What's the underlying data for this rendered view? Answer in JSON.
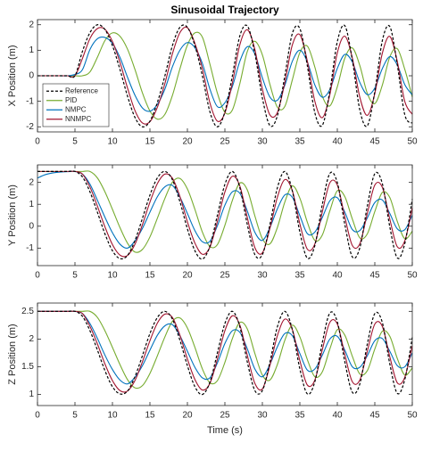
{
  "chart_data": [
    {
      "type": "line",
      "title": "Sinusoidal Trajectory",
      "ylabel": "X Position (m)",
      "legend": "lower left",
      "x": [
        0,
        1,
        2,
        3,
        4,
        5,
        6,
        7,
        8,
        9,
        10,
        11,
        12,
        13,
        14,
        15,
        16,
        17,
        18,
        19,
        20,
        21,
        22,
        23,
        24,
        25,
        26,
        27,
        28,
        29,
        30,
        31,
        32,
        33,
        34,
        35,
        36,
        37,
        38,
        39,
        40,
        41,
        42,
        43,
        44,
        45,
        46,
        47,
        48,
        49,
        50
      ],
      "xlim": [
        0,
        50
      ],
      "xticks": [
        0,
        5,
        10,
        15,
        20,
        25,
        30,
        35,
        40,
        45,
        50
      ],
      "ylim": [
        -2.2,
        2.2
      ],
      "yticks": [
        -2,
        -1,
        0,
        1,
        2
      ],
      "series": [
        {
          "name": "Reference",
          "color": "#000000",
          "dashed": true,
          "values": [
            0,
            0,
            0,
            0,
            0,
            0,
            0.96,
            1.69,
            2.0,
            1.81,
            1.18,
            0.25,
            -0.79,
            -1.63,
            -2.0,
            -1.78,
            -1.04,
            0,
            1.18,
            1.9,
            1.9,
            1.18,
            0,
            -1.41,
            -2.0,
            -1.41,
            0,
            1.57,
            1.95,
            0.87,
            -0.87,
            -1.95,
            -1.57,
            0,
            1.66,
            1.85,
            0.39,
            -1.45,
            -1.94,
            -0.6,
            1.34,
            1.96,
            0.62,
            -1.34,
            -1.96,
            -0.62,
            1.37,
            1.93,
            0.43,
            -1.53,
            -1.86
          ]
        },
        {
          "name": "PID",
          "color": "#77ac30",
          "values": [
            0,
            0,
            0,
            0,
            0,
            0,
            0,
            0.15,
            0.73,
            1.38,
            1.68,
            1.55,
            1.05,
            0.25,
            -0.67,
            -1.38,
            -1.7,
            -1.51,
            -0.77,
            0.27,
            1.2,
            1.68,
            1.51,
            0.46,
            -0.68,
            -1.43,
            -1.34,
            -0.3,
            0.96,
            1.35,
            0.82,
            -0.33,
            -1.23,
            -1.2,
            -0.16,
            0.91,
            1.16,
            0.34,
            -0.8,
            -1.18,
            -0.43,
            0.69,
            1.09,
            0.4,
            -0.69,
            -1.09,
            -0.37,
            0.74,
            1.06,
            0.25,
            -0.83
          ]
        },
        {
          "name": "NMPC",
          "color": "#0072bd",
          "values": [
            0,
            0,
            0,
            0,
            0,
            0.05,
            0.24,
            1.03,
            1.45,
            1.5,
            1.27,
            0.72,
            -0.05,
            -0.76,
            -1.26,
            -1.39,
            -1.12,
            -0.52,
            0.35,
            1.0,
            1.3,
            1.1,
            0.48,
            -0.52,
            -1.21,
            -1.06,
            -0.42,
            0.57,
            1.14,
            0.85,
            -0.08,
            -0.83,
            -0.96,
            -0.37,
            0.57,
            1.0,
            0.54,
            -0.36,
            -0.84,
            -0.54,
            0.29,
            0.84,
            0.54,
            -0.26,
            -0.74,
            -0.48,
            0.28,
            0.75,
            0.42,
            -0.35,
            -0.75
          ]
        },
        {
          "name": "NNMPC",
          "color": "#a2142f",
          "values": [
            0,
            0,
            0,
            0,
            0,
            0,
            0.68,
            1.46,
            1.85,
            1.82,
            1.34,
            0.53,
            -0.47,
            -1.36,
            -1.85,
            -1.8,
            -1.23,
            -0.3,
            0.86,
            1.69,
            1.88,
            1.27,
            0.28,
            -1.06,
            -1.78,
            -1.46,
            -0.28,
            1.22,
            1.8,
            1.03,
            -0.52,
            -1.53,
            -1.44,
            -0.26,
            1.21,
            1.61,
            0.57,
            -1.0,
            -1.64,
            -0.74,
            0.9,
            1.55,
            0.7,
            -0.84,
            -1.55,
            -0.7,
            0.88,
            1.54,
            0.56,
            -1.01,
            -1.51
          ]
        }
      ]
    },
    {
      "type": "line",
      "ylabel": "Y Position (m)",
      "x": [
        0,
        1,
        2,
        3,
        4,
        5,
        6,
        7,
        8,
        9,
        10,
        11,
        12,
        13,
        14,
        15,
        16,
        17,
        18,
        19,
        20,
        21,
        22,
        23,
        24,
        25,
        26,
        27,
        28,
        29,
        30,
        31,
        32,
        33,
        34,
        35,
        36,
        37,
        38,
        39,
        40,
        41,
        42,
        43,
        44,
        45,
        46,
        47,
        48,
        49,
        50
      ],
      "xlim": [
        0,
        50
      ],
      "xticks": [
        0,
        5,
        10,
        15,
        20,
        25,
        30,
        35,
        40,
        45,
        50
      ],
      "ylim": [
        -1.8,
        2.8
      ],
      "yticks": [
        -1,
        0,
        1,
        2
      ],
      "series": [
        {
          "color": "#000000",
          "dashed": true,
          "values": [
            2.5,
            2.5,
            2.5,
            2.5,
            2.5,
            2.5,
            2.25,
            1.57,
            0.63,
            -0.35,
            -1.12,
            -1.48,
            -1.34,
            -0.66,
            0.36,
            1.42,
            2.21,
            2.5,
            2.12,
            1.12,
            -0.12,
            -1.12,
            -1.5,
            -0.91,
            0.5,
            1.91,
            2.5,
            1.75,
            0.06,
            -1.3,
            -1.3,
            0.06,
            1.75,
            2.5,
            1.61,
            -0.27,
            -1.46,
            -0.88,
            1.0,
            2.41,
            1.99,
            0.08,
            -1.4,
            -0.99,
            0.92,
            2.4,
            1.95,
            -0.03,
            -1.45,
            -0.79,
            1.24
          ]
        },
        {
          "color": "#77ac30",
          "values": [
            2.5,
            2.5,
            2.5,
            2.5,
            2.5,
            2.5,
            2.5,
            2.5,
            2.2,
            1.57,
            0.77,
            -0.06,
            -0.77,
            -1.18,
            -1.06,
            -0.49,
            0.37,
            1.27,
            2.01,
            2.18,
            1.7,
            0.77,
            -0.27,
            -0.93,
            -0.84,
            0.04,
            1.18,
            1.97,
            1.65,
            0.47,
            -0.57,
            -0.81,
            -0.06,
            1.11,
            1.84,
            1.28,
            0.18,
            -0.65,
            -0.4,
            0.7,
            1.62,
            1.35,
            0.33,
            -0.53,
            -0.35,
            0.67,
            1.54,
            1.31,
            0.22,
            -0.57,
            -0.23
          ]
        },
        {
          "color": "#0072bd",
          "values": [
            2.2,
            2.35,
            2.43,
            2.47,
            2.49,
            2.5,
            2.38,
            1.92,
            1.18,
            0.41,
            -0.3,
            -0.82,
            -1.0,
            -0.67,
            -0.1,
            0.64,
            1.35,
            1.8,
            1.86,
            1.33,
            0.58,
            -0.2,
            -0.71,
            -0.69,
            0.02,
            0.96,
            1.57,
            1.5,
            0.68,
            -0.28,
            -0.65,
            -0.07,
            0.79,
            1.43,
            1.32,
            0.48,
            -0.34,
            -0.27,
            0.4,
            1.16,
            1.3,
            0.64,
            -0.15,
            -0.2,
            0.38,
            1.08,
            1.2,
            0.58,
            -0.12,
            -0.16,
            0.5
          ]
        },
        {
          "color": "#a2142f",
          "values": [
            2.5,
            2.5,
            2.5,
            2.5,
            2.5,
            2.5,
            2.38,
            1.79,
            0.91,
            -0.03,
            -0.84,
            -1.32,
            -1.34,
            -0.83,
            0.07,
            1.1,
            1.95,
            2.38,
            2.19,
            1.36,
            0.2,
            -0.77,
            -1.28,
            -0.96,
            0.22,
            1.56,
            2.28,
            1.83,
            0.38,
            -0.98,
            -1.22,
            -0.11,
            1.32,
            2.13,
            1.62,
            0.11,
            -1.05,
            -0.81,
            0.66,
            1.98,
            1.88,
            0.42,
            -0.88,
            -0.8,
            0.58,
            1.88,
            1.78,
            0.32,
            -0.94,
            -0.67,
            0.84
          ]
        }
      ]
    },
    {
      "type": "line",
      "ylabel": "Z Position (m)",
      "xlabel": "Time (s)",
      "x": [
        0,
        1,
        2,
        3,
        4,
        5,
        6,
        7,
        8,
        9,
        10,
        11,
        12,
        13,
        14,
        15,
        16,
        17,
        18,
        19,
        20,
        21,
        22,
        23,
        24,
        25,
        26,
        27,
        28,
        29,
        30,
        31,
        32,
        33,
        34,
        35,
        36,
        37,
        38,
        39,
        40,
        41,
        42,
        43,
        44,
        45,
        46,
        47,
        48,
        49,
        50
      ],
      "xlim": [
        0,
        50
      ],
      "xticks": [
        0,
        5,
        10,
        15,
        20,
        25,
        30,
        35,
        40,
        45,
        50
      ],
      "ylim": [
        0.8,
        2.65
      ],
      "yticks": [
        1,
        1.5,
        2,
        2.5
      ],
      "series": [
        {
          "color": "#000000",
          "dashed": true,
          "values": [
            2.5,
            2.5,
            2.5,
            2.5,
            2.5,
            2.5,
            2.41,
            2.15,
            1.8,
            1.43,
            1.14,
            1.01,
            1.06,
            1.32,
            1.7,
            2.1,
            2.39,
            2.5,
            2.36,
            1.98,
            1.52,
            1.14,
            1.0,
            1.22,
            1.75,
            2.28,
            2.5,
            2.22,
            1.58,
            1.07,
            1.07,
            1.58,
            2.22,
            2.5,
            2.17,
            1.46,
            1.01,
            1.23,
            1.94,
            2.47,
            2.31,
            1.59,
            1.04,
            1.19,
            1.91,
            2.46,
            2.3,
            1.55,
            1.02,
            1.27,
            2.03
          ]
        },
        {
          "color": "#77ac30",
          "values": [
            2.5,
            2.5,
            2.5,
            2.5,
            2.5,
            2.5,
            2.5,
            2.5,
            2.39,
            2.15,
            1.85,
            1.54,
            1.27,
            1.12,
            1.16,
            1.38,
            1.7,
            2.04,
            2.32,
            2.38,
            2.2,
            1.85,
            1.46,
            1.21,
            1.25,
            1.58,
            2.01,
            2.3,
            2.18,
            1.74,
            1.35,
            1.26,
            1.54,
            1.98,
            2.25,
            2.04,
            1.63,
            1.32,
            1.41,
            1.82,
            2.17,
            2.07,
            1.69,
            1.37,
            1.43,
            1.82,
            2.14,
            2.05,
            1.65,
            1.35,
            1.48
          ]
        },
        {
          "color": "#0072bd",
          "values": [
            2.5,
            2.5,
            2.5,
            2.5,
            2.5,
            2.5,
            2.46,
            2.28,
            2.01,
            1.71,
            1.45,
            1.26,
            1.19,
            1.31,
            1.52,
            1.8,
            2.07,
            2.24,
            2.26,
            2.06,
            1.78,
            1.49,
            1.3,
            1.3,
            1.57,
            1.92,
            2.15,
            2.12,
            1.82,
            1.46,
            1.32,
            1.54,
            1.86,
            2.1,
            2.06,
            1.74,
            1.44,
            1.46,
            1.71,
            2.0,
            2.05,
            1.8,
            1.5,
            1.49,
            1.7,
            1.97,
            2.01,
            1.78,
            1.52,
            1.5,
            1.75
          ]
        },
        {
          "color": "#a2142f",
          "values": [
            2.5,
            2.5,
            2.5,
            2.5,
            2.5,
            2.5,
            2.46,
            2.23,
            1.91,
            1.55,
            1.25,
            1.07,
            1.06,
            1.25,
            1.59,
            1.97,
            2.29,
            2.45,
            2.39,
            2.07,
            1.64,
            1.27,
            1.08,
            1.2,
            1.64,
            2.15,
            2.42,
            2.25,
            1.7,
            1.2,
            1.1,
            1.52,
            2.06,
            2.36,
            2.17,
            1.61,
            1.17,
            1.26,
            1.81,
            2.3,
            2.27,
            1.72,
            1.23,
            1.26,
            1.78,
            2.27,
            2.23,
            1.68,
            1.21,
            1.31,
            1.88
          ]
        }
      ]
    }
  ]
}
